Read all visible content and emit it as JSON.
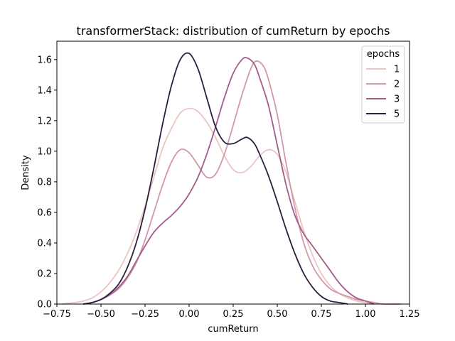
{
  "chart_data": {
    "type": "line",
    "title": "transformerStack: distribution of cumReturn by epochs",
    "xlabel": "cumReturn",
    "ylabel": "Density",
    "xlim": [
      -0.75,
      1.25
    ],
    "ylim": [
      0.0,
      1.72
    ],
    "xticks": [
      -0.75,
      -0.5,
      -0.25,
      0.0,
      0.25,
      0.5,
      0.75,
      1.0,
      1.25
    ],
    "xtick_labels": [
      "−0.75",
      "−0.50",
      "−0.25",
      "0.00",
      "0.25",
      "0.50",
      "0.75",
      "1.00",
      "1.25"
    ],
    "yticks": [
      0.0,
      0.2,
      0.4,
      0.6,
      0.8,
      1.0,
      1.2,
      1.4,
      1.6
    ],
    "ytick_labels": [
      "0.0",
      "0.2",
      "0.4",
      "0.6",
      "0.8",
      "1.0",
      "1.2",
      "1.4",
      "1.6"
    ],
    "grid": false,
    "legend": {
      "title": "epochs",
      "placement": "top-right"
    },
    "series": [
      {
        "name": "1",
        "color": "#ebc5c1",
        "points": [
          [
            -0.72,
            0.0
          ],
          [
            -0.65,
            0.01
          ],
          [
            -0.6,
            0.02
          ],
          [
            -0.55,
            0.04
          ],
          [
            -0.5,
            0.08
          ],
          [
            -0.45,
            0.14
          ],
          [
            -0.4,
            0.22
          ],
          [
            -0.35,
            0.33
          ],
          [
            -0.3,
            0.47
          ],
          [
            -0.25,
            0.64
          ],
          [
            -0.2,
            0.83
          ],
          [
            -0.15,
            1.02
          ],
          [
            -0.1,
            1.15
          ],
          [
            -0.05,
            1.25
          ],
          [
            0.0,
            1.28
          ],
          [
            0.05,
            1.26
          ],
          [
            0.1,
            1.19
          ],
          [
            0.15,
            1.09
          ],
          [
            0.2,
            0.97
          ],
          [
            0.25,
            0.88
          ],
          [
            0.3,
            0.86
          ],
          [
            0.35,
            0.9
          ],
          [
            0.4,
            0.97
          ],
          [
            0.45,
            1.01
          ],
          [
            0.5,
            0.98
          ],
          [
            0.55,
            0.86
          ],
          [
            0.6,
            0.67
          ],
          [
            0.65,
            0.48
          ],
          [
            0.7,
            0.32
          ],
          [
            0.75,
            0.2
          ],
          [
            0.8,
            0.12
          ],
          [
            0.85,
            0.07
          ],
          [
            0.9,
            0.04
          ],
          [
            0.95,
            0.02
          ],
          [
            1.0,
            0.01
          ],
          [
            1.05,
            0.0
          ]
        ]
      },
      {
        "name": "2",
        "color": "#d198a9",
        "points": [
          [
            -0.6,
            0.0
          ],
          [
            -0.55,
            0.01
          ],
          [
            -0.5,
            0.03
          ],
          [
            -0.45,
            0.06
          ],
          [
            -0.4,
            0.1
          ],
          [
            -0.35,
            0.17
          ],
          [
            -0.3,
            0.27
          ],
          [
            -0.25,
            0.42
          ],
          [
            -0.2,
            0.6
          ],
          [
            -0.15,
            0.78
          ],
          [
            -0.1,
            0.93
          ],
          [
            -0.05,
            1.01
          ],
          [
            0.0,
            0.99
          ],
          [
            0.05,
            0.91
          ],
          [
            0.1,
            0.83
          ],
          [
            0.15,
            0.85
          ],
          [
            0.2,
            0.98
          ],
          [
            0.25,
            1.17
          ],
          [
            0.3,
            1.37
          ],
          [
            0.35,
            1.54
          ],
          [
            0.38,
            1.59
          ],
          [
            0.42,
            1.56
          ],
          [
            0.45,
            1.47
          ],
          [
            0.5,
            1.24
          ],
          [
            0.55,
            0.92
          ],
          [
            0.6,
            0.63
          ],
          [
            0.65,
            0.4
          ],
          [
            0.7,
            0.25
          ],
          [
            0.75,
            0.16
          ],
          [
            0.8,
            0.1
          ],
          [
            0.85,
            0.07
          ],
          [
            0.9,
            0.05
          ],
          [
            0.95,
            0.03
          ],
          [
            1.0,
            0.02
          ],
          [
            1.05,
            0.01
          ],
          [
            1.1,
            0.0
          ],
          [
            1.2,
            0.0
          ]
        ]
      },
      {
        "name": "3",
        "color": "#a35c8a",
        "points": [
          [
            -0.6,
            0.0
          ],
          [
            -0.55,
            0.01
          ],
          [
            -0.5,
            0.03
          ],
          [
            -0.45,
            0.06
          ],
          [
            -0.4,
            0.11
          ],
          [
            -0.35,
            0.18
          ],
          [
            -0.3,
            0.28
          ],
          [
            -0.25,
            0.38
          ],
          [
            -0.2,
            0.47
          ],
          [
            -0.15,
            0.53
          ],
          [
            -0.1,
            0.58
          ],
          [
            -0.05,
            0.64
          ],
          [
            0.0,
            0.72
          ],
          [
            0.05,
            0.83
          ],
          [
            0.1,
            0.98
          ],
          [
            0.15,
            1.16
          ],
          [
            0.2,
            1.35
          ],
          [
            0.25,
            1.51
          ],
          [
            0.3,
            1.6
          ],
          [
            0.33,
            1.61
          ],
          [
            0.37,
            1.57
          ],
          [
            0.4,
            1.48
          ],
          [
            0.45,
            1.3
          ],
          [
            0.5,
            1.04
          ],
          [
            0.55,
            0.78
          ],
          [
            0.6,
            0.58
          ],
          [
            0.65,
            0.46
          ],
          [
            0.7,
            0.38
          ],
          [
            0.75,
            0.3
          ],
          [
            0.8,
            0.22
          ],
          [
            0.85,
            0.14
          ],
          [
            0.9,
            0.08
          ],
          [
            0.95,
            0.04
          ],
          [
            1.0,
            0.02
          ],
          [
            1.05,
            0.0
          ]
        ]
      },
      {
        "name": "5",
        "color": "#2b1e3f",
        "points": [
          [
            -0.6,
            0.0
          ],
          [
            -0.55,
            0.01
          ],
          [
            -0.5,
            0.03
          ],
          [
            -0.45,
            0.07
          ],
          [
            -0.4,
            0.13
          ],
          [
            -0.35,
            0.24
          ],
          [
            -0.3,
            0.4
          ],
          [
            -0.25,
            0.62
          ],
          [
            -0.2,
            0.89
          ],
          [
            -0.15,
            1.18
          ],
          [
            -0.1,
            1.43
          ],
          [
            -0.05,
            1.6
          ],
          [
            0.0,
            1.64
          ],
          [
            0.05,
            1.54
          ],
          [
            0.1,
            1.35
          ],
          [
            0.15,
            1.16
          ],
          [
            0.2,
            1.06
          ],
          [
            0.25,
            1.05
          ],
          [
            0.3,
            1.08
          ],
          [
            0.33,
            1.09
          ],
          [
            0.37,
            1.05
          ],
          [
            0.4,
            0.98
          ],
          [
            0.45,
            0.84
          ],
          [
            0.5,
            0.67
          ],
          [
            0.55,
            0.49
          ],
          [
            0.6,
            0.33
          ],
          [
            0.65,
            0.2
          ],
          [
            0.7,
            0.11
          ],
          [
            0.75,
            0.05
          ],
          [
            0.8,
            0.02
          ],
          [
            0.85,
            0.01
          ],
          [
            0.9,
            0.0
          ]
        ]
      }
    ]
  }
}
